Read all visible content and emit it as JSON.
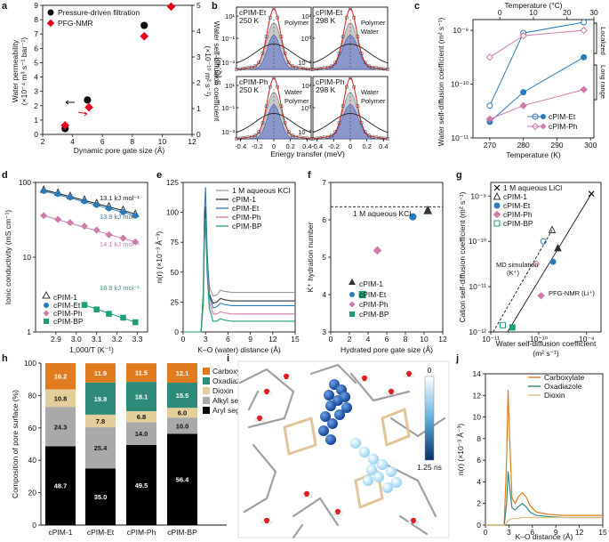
{
  "colors": {
    "pim1": "#333333",
    "et": "#2b7bba",
    "ph": "#cf7ba9",
    "bp": "#1f9e78",
    "carboxylate": "#e07b1f",
    "oxadiazole": "#2e8b7a",
    "dioxin": "#e4cf9c",
    "alkyl": "#a9a9a9",
    "aryl": "#000000"
  },
  "panel_labels": [
    "a",
    "b",
    "c",
    "d",
    "e",
    "f",
    "g",
    "h",
    "i",
    "j"
  ],
  "a": {
    "legend": [
      "Pressure-driven filtration",
      "PFG-NMR"
    ],
    "xlabel": "Dynamic pore gate size (Å)",
    "ylabel1": "Water permeability",
    "ylabel2": "(×10⁻⁴ m³ s⁻¹ bar⁻¹)",
    "y2label1": "Water self-diffusion coefficient",
    "y2label2": "(×10⁻¹⁰ m² s⁻¹)",
    "x_ticks": [
      "2",
      "4",
      "6",
      "8",
      "10",
      "12"
    ],
    "y_ticks": [
      "0",
      "1",
      "2",
      "3",
      "4",
      "5",
      "6",
      "7",
      "8",
      "9"
    ],
    "y2_ticks": [
      "0",
      "1",
      "2",
      "3",
      "4",
      "5"
    ]
  },
  "b": {
    "ylabel": "S (Q, ω)",
    "xlabel": "Energy transfer (meV)",
    "x_ticks": [
      "-0.4",
      "-0.2",
      "0",
      "0.2",
      "0.4"
    ],
    "left_ticks_top": [
      "10⁻³",
      "10⁻¹",
      "10¹"
    ],
    "right_ticks_top": [
      "10⁻²",
      "10⁰",
      "10²"
    ],
    "left_ticks_bot": [
      "10⁻³",
      "10⁻¹",
      "10¹"
    ],
    "right_ticks_bot": [
      "10⁻²",
      "10⁰",
      "10²"
    ],
    "sub": [
      {
        "name": "cPIM-Et",
        "temp": "250 K",
        "ann": [
          "Polymer"
        ]
      },
      {
        "name": "cPIM-Et",
        "temp": "298 K",
        "ann": [
          "Polymer",
          "Water"
        ]
      },
      {
        "name": "cPIM-Ph",
        "temp": "250 K",
        "ann": [
          "Water",
          "Polymer"
        ]
      },
      {
        "name": "cPIM-Ph",
        "temp": "298 K",
        "ann": [
          "Water",
          "Polymer"
        ]
      }
    ]
  },
  "c": {
    "xlabel": "Temperature (K)",
    "x2label": "Temperature (°C)",
    "ylabel": "Water self-diffusion coefficient (m² s⁻¹)",
    "x_ticks": [
      "270",
      "280",
      "290",
      "300"
    ],
    "x2_ticks": [
      "0",
      "10",
      "20",
      "30"
    ],
    "y_ticks": [
      "10⁻¹¹",
      "10⁻¹⁰",
      "10⁻⁹"
    ],
    "ann_localized": "Localized",
    "ann_longrange": "Long range",
    "legend": [
      "cPIM-Et",
      "cPIM-Ph"
    ]
  },
  "d": {
    "xlabel": "1,000/T (K⁻¹)",
    "ylabel": "Ionic conductivity (mS cm⁻¹)",
    "x_ticks": [
      "2.9",
      "3.0",
      "3.1",
      "3.2",
      "3.3"
    ],
    "y_ticks": [
      "1",
      "10",
      "100"
    ],
    "ea": [
      "13.1 kJ mol⁻¹",
      "13.9 kJ mol⁻¹",
      "14.1 kJ mol⁻¹",
      "18.9 kJ mol⁻¹"
    ],
    "legend": [
      "cPIM-1",
      "cPIM-Et",
      "cPIM-Ph",
      "cPIM-BP"
    ]
  },
  "e": {
    "xlabel": "K–O (water) distance (Å)",
    "ylabel": "n(r) (×10⁻³ Å⁻³)",
    "x_ticks": [
      "0",
      "3",
      "6",
      "9",
      "12",
      "15"
    ],
    "y_ticks": [
      "0",
      "25",
      "50",
      "75",
      "100",
      "125"
    ],
    "legend": [
      "1 M aqueous KCl",
      "cPIM-1",
      "cPIM-Et",
      "cPIM-Ph",
      "cPIM-BP"
    ]
  },
  "f": {
    "xlabel": "Hydrated pore gate size (Å)",
    "ylabel": "K⁺ hydration number",
    "x_ticks": [
      "0",
      "2",
      "4",
      "6",
      "8",
      "10",
      "12"
    ],
    "y_ticks": [
      "3",
      "4",
      "5",
      "6",
      "7"
    ],
    "ref_label": "1 M aqueous KCl",
    "legend": [
      "cPIM-1",
      "cPIM-Et",
      "cPIM-Ph",
      "cPIM-BP"
    ]
  },
  "g": {
    "xlabel1": "Water self-diffusion coefficient",
    "xlabel2": "(m² s⁻¹)",
    "ylabel": "Cation self-diffusion coefficient (m² s⁻¹)",
    "x_ticks": [
      "10⁻¹¹",
      "10⁻¹⁰",
      "10⁻⁹"
    ],
    "y_ticks": [
      "10⁻¹²",
      "10⁻¹¹",
      "10⁻¹⁰",
      "10⁻⁹"
    ],
    "legend": [
      "1 M aqueous LiCl",
      "cPIM-1",
      "cPIM-Et",
      "cPIM-Ph",
      "cPIM-BP"
    ],
    "ann_md": "MD simulation",
    "ann_md2": "(K⁺)",
    "ann_nmr": "PFG-NMR (Li⁺)"
  },
  "h": {
    "ylabel": "Composition of pore surface (%)",
    "y_ticks": [
      "0",
      "20",
      "40",
      "60",
      "80",
      "100"
    ],
    "legend": [
      "Carboxylate",
      "Oxadiazole",
      "Dioxin",
      "Alkyl segment",
      "Aryl segment"
    ]
  },
  "i": {
    "cbar_top": "0",
    "cbar_bot": "1.25 ns"
  },
  "j": {
    "xlabel": "K–O distance (Å)",
    "ylabel": "n(r) (×10⁻³ Å⁻³)",
    "x_ticks": [
      "0",
      "3",
      "6",
      "9",
      "12",
      "15"
    ],
    "y_ticks": [
      "0",
      "2",
      "4",
      "6",
      "8",
      "10",
      "12",
      "14"
    ],
    "legend": [
      "Carboxylate",
      "Oxadiazole",
      "Dioxin"
    ]
  },
  "chart_data": [
    {
      "panel": "a",
      "type": "scatter",
      "xlabel": "Dynamic pore gate size (Å)",
      "xlim": [
        2,
        12
      ],
      "ylim": [
        0,
        9
      ],
      "y2lim": [
        0,
        5
      ],
      "series": [
        {
          "name": "Pressure-driven filtration",
          "x": [
            3.5,
            5.0,
            8.8
          ],
          "y": [
            0.4,
            2.4,
            7.6
          ]
        },
        {
          "name": "PFG-NMR",
          "x": [
            3.5,
            5.1,
            8.8,
            10.6
          ],
          "y": [
            0.35,
            1.05,
            3.8,
            4.95
          ],
          "axis": "right"
        }
      ]
    },
    {
      "panel": "c",
      "type": "line",
      "xlim": [
        265,
        301
      ],
      "ylim_log10": [
        -11,
        -8.8
      ],
      "series": [
        {
          "name": "cPIM-Et localized",
          "x": [
            270,
            280,
            298
          ],
          "y_log10": [
            -10.4,
            -9.05,
            -8.85
          ],
          "marker": "open"
        },
        {
          "name": "cPIM-Et long range",
          "x": [
            270,
            280,
            298
          ],
          "y_log10": [
            -10.7,
            -10.15,
            -9.5
          ],
          "marker": "filled"
        },
        {
          "name": "cPIM-Ph localized",
          "x": [
            270,
            280,
            298
          ],
          "y_log10": [
            -9.5,
            -9.1,
            -9.0
          ],
          "marker": "open"
        },
        {
          "name": "cPIM-Ph long range",
          "x": [
            270,
            280,
            298
          ],
          "y_log10": [
            -10.65,
            -10.4,
            -10.1
          ],
          "marker": "filled"
        }
      ]
    },
    {
      "panel": "d",
      "type": "scatter",
      "xlim": [
        2.8,
        3.35
      ],
      "ylim_log10": [
        0,
        2
      ],
      "x": [
        2.84,
        2.91,
        2.97,
        3.04,
        3.1,
        3.16,
        3.23,
        3.29
      ],
      "series": [
        {
          "name": "cPIM-1",
          "y": [
            80,
            73,
            66,
            59,
            53,
            48,
            43,
            38
          ]
        },
        {
          "name": "cPIM-Et",
          "y": [
            77,
            70,
            63,
            56,
            50,
            45,
            40,
            36
          ]
        },
        {
          "name": "cPIM-Ph",
          "y": [
            36,
            32,
            29,
            26,
            23,
            20,
            18,
            16
          ]
        },
        {
          "name": "cPIM-BP",
          "y": [
            null,
            null,
            null,
            2.3,
            2.0,
            1.75,
            1.55,
            1.35
          ]
        }
      ]
    },
    {
      "panel": "e",
      "type": "line",
      "xlim": [
        0,
        15
      ],
      "ylim": [
        0,
        125
      ],
      "series": [
        {
          "name": "1 M aqueous KCl",
          "x": [
            0,
            2.4,
            2.7,
            2.85,
            3.0,
            3.2,
            3.5,
            4.0,
            4.5,
            5.0,
            5.5,
            6.5,
            8,
            10,
            15
          ],
          "y": [
            0,
            0,
            30,
            85,
            100,
            65,
            38,
            30,
            31,
            35,
            34,
            33,
            33,
            33,
            33
          ]
        },
        {
          "name": "cPIM-1",
          "x": [
            0,
            2.4,
            2.7,
            2.85,
            3.0,
            3.2,
            3.5,
            4.0,
            4.5,
            5.0,
            5.5,
            6.5,
            8,
            10,
            15
          ],
          "y": [
            0,
            0,
            30,
            90,
            105,
            65,
            32,
            24,
            25,
            28,
            27,
            26,
            26,
            26,
            26
          ]
        },
        {
          "name": "cPIM-Et",
          "x": [
            0,
            2.4,
            2.7,
            2.85,
            3.0,
            3.2,
            3.5,
            4.0,
            4.5,
            5.0,
            5.5,
            6.5,
            8,
            10,
            15
          ],
          "y": [
            0,
            0,
            35,
            100,
            121,
            70,
            30,
            20,
            21,
            24,
            23,
            22,
            22,
            22,
            22
          ]
        },
        {
          "name": "cPIM-Ph",
          "x": [
            0,
            2.4,
            2.7,
            2.85,
            3.0,
            3.2,
            3.5,
            4.0,
            4.5,
            5.0,
            5.5,
            6.5,
            8,
            10,
            15
          ],
          "y": [
            0,
            0,
            25,
            75,
            88,
            55,
            25,
            15,
            15,
            17,
            16,
            15,
            15,
            15,
            15
          ]
        },
        {
          "name": "cPIM-BP",
          "x": [
            0,
            2.4,
            2.7,
            2.85,
            3.0,
            3.2,
            3.5,
            4.0,
            4.5,
            5.0,
            5.5,
            6.5,
            8,
            10,
            15
          ],
          "y": [
            0,
            0,
            25,
            80,
            95,
            50,
            20,
            9,
            9,
            11,
            10,
            9,
            9,
            9,
            9
          ]
        }
      ]
    },
    {
      "panel": "f",
      "type": "scatter",
      "xlim": [
        0,
        12
      ],
      "ylim": [
        3,
        7
      ],
      "reference": 6.35,
      "series": [
        {
          "name": "cPIM-1",
          "x": [
            10.4
          ],
          "y": [
            6.25
          ]
        },
        {
          "name": "cPIM-Et",
          "x": [
            8.8
          ],
          "y": [
            6.08
          ]
        },
        {
          "name": "cPIM-Ph",
          "x": [
            5.0
          ],
          "y": [
            5.18
          ]
        },
        {
          "name": "cPIM-BP",
          "x": [
            3.4
          ],
          "y": [
            4.0
          ]
        }
      ]
    },
    {
      "panel": "g",
      "type": "scatter",
      "xlim_log10": [
        -11,
        -8.7
      ],
      "ylim_log10": [
        -12,
        -8.7
      ],
      "series": [
        {
          "name": "1 M aqueous LiCl",
          "x_log10": [
            -8.9
          ],
          "y_log10": [
            -8.95
          ]
        },
        {
          "name": "cPIM-1 (MD, open)",
          "x_log10": [
            -9.72
          ],
          "y_log10": [
            -9.75
          ]
        },
        {
          "name": "cPIM-1 (NMR, filled)",
          "x_log10": [
            -9.6
          ],
          "y_log10": [
            -10.15
          ]
        },
        {
          "name": "cPIM-Et (MD, open)",
          "x_log10": [
            -9.9
          ],
          "y_log10": [
            -10.0
          ]
        },
        {
          "name": "cPIM-Et (NMR, filled)",
          "x_log10": [
            -9.7
          ],
          "y_log10": [
            -10.45
          ]
        },
        {
          "name": "cPIM-Ph (MD, open)",
          "x_log10": [
            -10.05
          ],
          "y_log10": [
            -10.5
          ]
        },
        {
          "name": "cPIM-Ph (NMR, filled)",
          "x_log10": [
            -9.95
          ],
          "y_log10": [
            -11.2
          ]
        },
        {
          "name": "cPIM-BP (MD, open)",
          "x_log10": [
            -10.75
          ],
          "y_log10": [
            -11.85
          ]
        },
        {
          "name": "cPIM-BP (NMR, filled)",
          "x_log10": [
            -10.55
          ],
          "y_log10": [
            -11.9
          ]
        }
      ]
    },
    {
      "panel": "h",
      "type": "bar",
      "stacked": true,
      "categories": [
        "cPIM-1",
        "cPIM-Et",
        "cPIM-Ph",
        "cPIM-BP"
      ],
      "series": [
        {
          "name": "Aryl segment",
          "values": [
            48.7,
            35.0,
            49.5,
            56.4
          ]
        },
        {
          "name": "Alkyl segment",
          "values": [
            24.3,
            25.4,
            14.0,
            10.0
          ]
        },
        {
          "name": "Dioxin",
          "values": [
            10.8,
            7.8,
            6.8,
            6.0
          ]
        },
        {
          "name": "Oxadiazole",
          "values": [
            0,
            19.8,
            18.1,
            15.5
          ]
        },
        {
          "name": "Carboxylate",
          "values": [
            16.2,
            11.9,
            11.5,
            12.1
          ]
        }
      ]
    },
    {
      "panel": "j",
      "type": "line",
      "xlim": [
        0,
        15
      ],
      "ylim": [
        0,
        14
      ],
      "series": [
        {
          "name": "Carboxylate",
          "x": [
            0,
            2.4,
            2.7,
            2.9,
            3.1,
            3.4,
            3.8,
            4.2,
            4.7,
            5.2,
            5.7,
            6.5,
            8,
            10,
            15
          ],
          "y": [
            0,
            0,
            6,
            12.5,
            8,
            2.5,
            2.0,
            2.6,
            3.0,
            2.6,
            1.8,
            1.2,
            1.0,
            0.9,
            0.9
          ]
        },
        {
          "name": "Oxadiazole",
          "x": [
            0,
            2.4,
            2.7,
            2.9,
            3.1,
            3.4,
            3.8,
            4.2,
            4.7,
            5.2,
            5.7,
            6.5,
            8,
            10,
            15
          ],
          "y": [
            0,
            0,
            2,
            5.0,
            3.5,
            1.6,
            1.4,
            1.7,
            2.0,
            1.7,
            1.2,
            0.9,
            0.8,
            0.7,
            0.7
          ]
        },
        {
          "name": "Dioxin",
          "x": [
            0,
            2.4,
            2.7,
            2.9,
            3.1,
            3.4,
            3.8,
            4.2,
            4.7,
            5.2,
            5.7,
            6.5,
            8,
            10,
            15
          ],
          "y": [
            0,
            0,
            0.2,
            0.4,
            0.5,
            0.6,
            0.6,
            0.6,
            0.7,
            0.7,
            0.7,
            0.7,
            0.7,
            0.7,
            0.7
          ]
        }
      ]
    }
  ]
}
